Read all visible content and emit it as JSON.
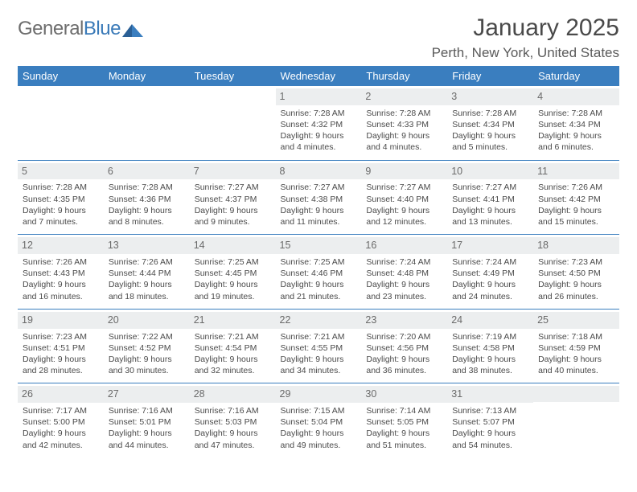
{
  "logo": {
    "word1": "General",
    "word2": "Blue"
  },
  "title": "January 2025",
  "location": "Perth, New York, United States",
  "colors": {
    "header_bg": "#3a7ebf",
    "header_text": "#ffffff",
    "daynum_bg": "#eceeef",
    "text": "#4a4a4a"
  },
  "daysOfWeek": [
    "Sunday",
    "Monday",
    "Tuesday",
    "Wednesday",
    "Thursday",
    "Friday",
    "Saturday"
  ],
  "weeks": [
    [
      null,
      null,
      null,
      {
        "n": "1",
        "sr": "7:28 AM",
        "ss": "4:32 PM",
        "dl": "9 hours and 4 minutes."
      },
      {
        "n": "2",
        "sr": "7:28 AM",
        "ss": "4:33 PM",
        "dl": "9 hours and 4 minutes."
      },
      {
        "n": "3",
        "sr": "7:28 AM",
        "ss": "4:34 PM",
        "dl": "9 hours and 5 minutes."
      },
      {
        "n": "4",
        "sr": "7:28 AM",
        "ss": "4:34 PM",
        "dl": "9 hours and 6 minutes."
      }
    ],
    [
      {
        "n": "5",
        "sr": "7:28 AM",
        "ss": "4:35 PM",
        "dl": "9 hours and 7 minutes."
      },
      {
        "n": "6",
        "sr": "7:28 AM",
        "ss": "4:36 PM",
        "dl": "9 hours and 8 minutes."
      },
      {
        "n": "7",
        "sr": "7:27 AM",
        "ss": "4:37 PM",
        "dl": "9 hours and 9 minutes."
      },
      {
        "n": "8",
        "sr": "7:27 AM",
        "ss": "4:38 PM",
        "dl": "9 hours and 11 minutes."
      },
      {
        "n": "9",
        "sr": "7:27 AM",
        "ss": "4:40 PM",
        "dl": "9 hours and 12 minutes."
      },
      {
        "n": "10",
        "sr": "7:27 AM",
        "ss": "4:41 PM",
        "dl": "9 hours and 13 minutes."
      },
      {
        "n": "11",
        "sr": "7:26 AM",
        "ss": "4:42 PM",
        "dl": "9 hours and 15 minutes."
      }
    ],
    [
      {
        "n": "12",
        "sr": "7:26 AM",
        "ss": "4:43 PM",
        "dl": "9 hours and 16 minutes."
      },
      {
        "n": "13",
        "sr": "7:26 AM",
        "ss": "4:44 PM",
        "dl": "9 hours and 18 minutes."
      },
      {
        "n": "14",
        "sr": "7:25 AM",
        "ss": "4:45 PM",
        "dl": "9 hours and 19 minutes."
      },
      {
        "n": "15",
        "sr": "7:25 AM",
        "ss": "4:46 PM",
        "dl": "9 hours and 21 minutes."
      },
      {
        "n": "16",
        "sr": "7:24 AM",
        "ss": "4:48 PM",
        "dl": "9 hours and 23 minutes."
      },
      {
        "n": "17",
        "sr": "7:24 AM",
        "ss": "4:49 PM",
        "dl": "9 hours and 24 minutes."
      },
      {
        "n": "18",
        "sr": "7:23 AM",
        "ss": "4:50 PM",
        "dl": "9 hours and 26 minutes."
      }
    ],
    [
      {
        "n": "19",
        "sr": "7:23 AM",
        "ss": "4:51 PM",
        "dl": "9 hours and 28 minutes."
      },
      {
        "n": "20",
        "sr": "7:22 AM",
        "ss": "4:52 PM",
        "dl": "9 hours and 30 minutes."
      },
      {
        "n": "21",
        "sr": "7:21 AM",
        "ss": "4:54 PM",
        "dl": "9 hours and 32 minutes."
      },
      {
        "n": "22",
        "sr": "7:21 AM",
        "ss": "4:55 PM",
        "dl": "9 hours and 34 minutes."
      },
      {
        "n": "23",
        "sr": "7:20 AM",
        "ss": "4:56 PM",
        "dl": "9 hours and 36 minutes."
      },
      {
        "n": "24",
        "sr": "7:19 AM",
        "ss": "4:58 PM",
        "dl": "9 hours and 38 minutes."
      },
      {
        "n": "25",
        "sr": "7:18 AM",
        "ss": "4:59 PM",
        "dl": "9 hours and 40 minutes."
      }
    ],
    [
      {
        "n": "26",
        "sr": "7:17 AM",
        "ss": "5:00 PM",
        "dl": "9 hours and 42 minutes."
      },
      {
        "n": "27",
        "sr": "7:16 AM",
        "ss": "5:01 PM",
        "dl": "9 hours and 44 minutes."
      },
      {
        "n": "28",
        "sr": "7:16 AM",
        "ss": "5:03 PM",
        "dl": "9 hours and 47 minutes."
      },
      {
        "n": "29",
        "sr": "7:15 AM",
        "ss": "5:04 PM",
        "dl": "9 hours and 49 minutes."
      },
      {
        "n": "30",
        "sr": "7:14 AM",
        "ss": "5:05 PM",
        "dl": "9 hours and 51 minutes."
      },
      {
        "n": "31",
        "sr": "7:13 AM",
        "ss": "5:07 PM",
        "dl": "9 hours and 54 minutes."
      },
      null
    ]
  ],
  "labels": {
    "sunrise": "Sunrise:",
    "sunset": "Sunset:",
    "daylight": "Daylight:"
  }
}
